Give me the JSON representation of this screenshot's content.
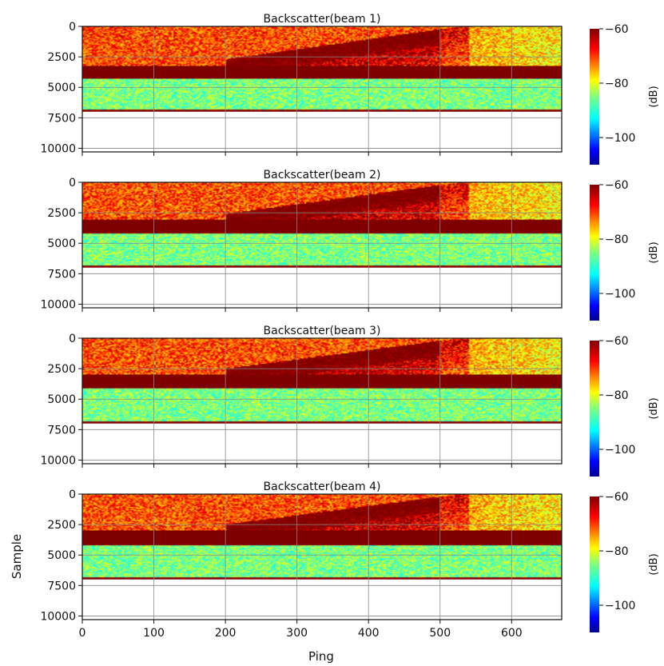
{
  "figure": {
    "shared_xlabel": "Ping",
    "shared_ylabel": "Sample"
  },
  "colors": {
    "colormap": [
      "#00008f",
      "#0000ff",
      "#007fff",
      "#00ffff",
      "#7fff7f",
      "#ffff00",
      "#ff7f00",
      "#ff0000",
      "#7f0000"
    ],
    "axis": "#111111",
    "grid": "#8a8a8a"
  },
  "chart_data": [
    {
      "type": "heatmap",
      "title": "Backscatter(beam 1)",
      "xlabel": "",
      "ylabel": "",
      "xlim": [
        0,
        670
      ],
      "ylim": [
        10300,
        0
      ],
      "xticks": [
        0,
        100,
        200,
        300,
        400,
        500,
        600
      ],
      "xtick_labels": [],
      "yticks": [
        0,
        2500,
        5000,
        7500,
        10000
      ],
      "ytick_labels": [
        "0",
        "2500",
        "5000",
        "7500",
        "10000"
      ],
      "grid": true,
      "colorbar": {
        "label": "(dB)",
        "range": [
          -110,
          -60
        ],
        "ticks": [
          -60,
          -80,
          -100
        ],
        "tick_labels": [
          "−60",
          "−80",
          "−100"
        ],
        "colormap": "jet"
      },
      "data_extent_sample": 7000,
      "bands": [
        {
          "sample_range": [
            0,
            3200
          ],
          "description": "noisy red/yellow",
          "approx_db": -70
        },
        {
          "sample_range": [
            3200,
            4300
          ],
          "description": "strong dark red layer",
          "approx_db": -58
        },
        {
          "sample_range": [
            4300,
            6800
          ],
          "description": "cyan/green background",
          "approx_db": -85
        },
        {
          "sample_range": [
            6800,
            7000
          ],
          "description": "dark red edge",
          "approx_db": -60
        }
      ],
      "plume": {
        "ping_range": [
          200,
          540
        ],
        "sample_range": [
          400,
          3200
        ],
        "approx_db": -60
      }
    },
    {
      "type": "heatmap",
      "title": "Backscatter(beam 2)",
      "xlabel": "",
      "ylabel": "",
      "xlim": [
        0,
        670
      ],
      "ylim": [
        10300,
        0
      ],
      "xticks": [
        0,
        100,
        200,
        300,
        400,
        500,
        600
      ],
      "xtick_labels": [],
      "yticks": [
        0,
        2500,
        5000,
        7500,
        10000
      ],
      "ytick_labels": [
        "0",
        "2500",
        "5000",
        "7500",
        "10000"
      ],
      "grid": true,
      "colorbar": {
        "label": "(dB)",
        "range": [
          -110,
          -60
        ],
        "ticks": [
          -60,
          -80,
          -100
        ],
        "tick_labels": [
          "−60",
          "−80",
          "−100"
        ],
        "colormap": "jet"
      },
      "data_extent_sample": 7000,
      "bands": [
        {
          "sample_range": [
            0,
            3100
          ],
          "description": "noisy red/yellow",
          "approx_db": -70
        },
        {
          "sample_range": [
            3100,
            4200
          ],
          "description": "strong dark red layer",
          "approx_db": -58
        },
        {
          "sample_range": [
            4200,
            6800
          ],
          "description": "cyan/green background",
          "approx_db": -85
        },
        {
          "sample_range": [
            6800,
            7000
          ],
          "description": "dark red edge",
          "approx_db": -60
        }
      ],
      "plume": {
        "ping_range": [
          200,
          540
        ],
        "sample_range": [
          400,
          3100
        ],
        "approx_db": -60
      }
    },
    {
      "type": "heatmap",
      "title": "Backscatter(beam 3)",
      "xlabel": "",
      "ylabel": "",
      "xlim": [
        0,
        670
      ],
      "ylim": [
        10300,
        0
      ],
      "xticks": [
        0,
        100,
        200,
        300,
        400,
        500,
        600
      ],
      "xtick_labels": [],
      "yticks": [
        0,
        2500,
        5000,
        7500,
        10000
      ],
      "ytick_labels": [
        "0",
        "2500",
        "5000",
        "7500",
        "10000"
      ],
      "grid": true,
      "colorbar": {
        "label": "(dB)",
        "range": [
          -110,
          -60
        ],
        "ticks": [
          -60,
          -80,
          -100
        ],
        "tick_labels": [
          "−60",
          "−80",
          "−100"
        ],
        "colormap": "jet"
      },
      "data_extent_sample": 7000,
      "bands": [
        {
          "sample_range": [
            0,
            3000
          ],
          "description": "noisy red/yellow",
          "approx_db": -70
        },
        {
          "sample_range": [
            3000,
            4100
          ],
          "description": "strong dark red layer",
          "approx_db": -58
        },
        {
          "sample_range": [
            4100,
            6800
          ],
          "description": "cyan/green background",
          "approx_db": -85
        },
        {
          "sample_range": [
            6800,
            7000
          ],
          "description": "dark red edge",
          "approx_db": -60
        }
      ],
      "plume": {
        "ping_range": [
          200,
          540
        ],
        "sample_range": [
          400,
          3000
        ],
        "approx_db": -60
      }
    },
    {
      "type": "heatmap",
      "title": "Backscatter(beam 4)",
      "xlabel": "Ping",
      "ylabel": "Sample",
      "xlim": [
        0,
        670
      ],
      "ylim": [
        10300,
        0
      ],
      "xticks": [
        0,
        100,
        200,
        300,
        400,
        500,
        600
      ],
      "xtick_labels": [
        "0",
        "100",
        "200",
        "300",
        "400",
        "500",
        "600"
      ],
      "yticks": [
        0,
        2500,
        5000,
        7500,
        10000
      ],
      "ytick_labels": [
        "0",
        "2500",
        "5000",
        "7500",
        "10000"
      ],
      "grid": true,
      "colorbar": {
        "label": "(dB)",
        "range": [
          -110,
          -60
        ],
        "ticks": [
          -60,
          -80,
          -100
        ],
        "tick_labels": [
          "−60",
          "−80",
          "−100"
        ],
        "colormap": "jet"
      },
      "data_extent_sample": 7000,
      "bands": [
        {
          "sample_range": [
            0,
            3000
          ],
          "description": "noisy red/yellow",
          "approx_db": -70
        },
        {
          "sample_range": [
            3000,
            4200
          ],
          "description": "strong dark red layer",
          "approx_db": -58
        },
        {
          "sample_range": [
            4200,
            6800
          ],
          "description": "cyan/green background",
          "approx_db": -85
        },
        {
          "sample_range": [
            6800,
            7000
          ],
          "description": "dark red edge",
          "approx_db": -60
        }
      ],
      "plume": {
        "ping_range": [
          200,
          540
        ],
        "sample_range": [
          400,
          3000
        ],
        "approx_db": -60
      }
    }
  ]
}
